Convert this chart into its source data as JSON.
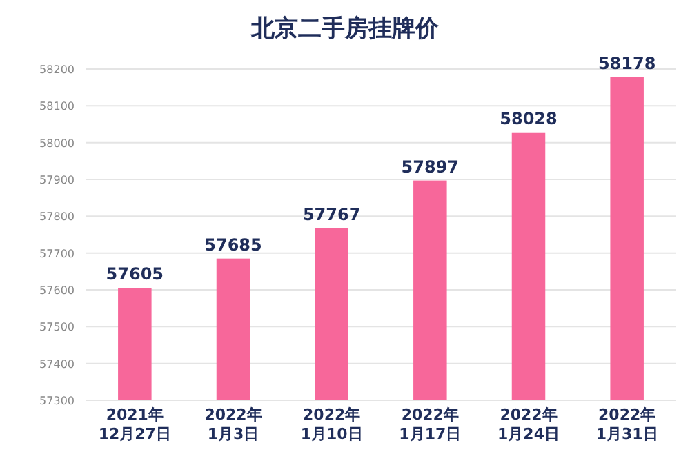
{
  "chart_data": {
    "type": "bar",
    "title": "北京二手房挂牌价",
    "categories": [
      "2021年\n12月27日",
      "2022年\n1月3日",
      "2022年\n1月10日",
      "2022年\n1月17日",
      "2022年\n1月24日",
      "2022年\n1月31日"
    ],
    "values": [
      57605,
      57685,
      57767,
      57897,
      58028,
      58178
    ],
    "color": "#f7679a",
    "ylim": [
      57300,
      58200
    ],
    "yticks": [
      57300,
      57400,
      57500,
      57600,
      57700,
      57800,
      57900,
      58000,
      58100,
      58200
    ],
    "grid": "y",
    "data_labels": true
  }
}
